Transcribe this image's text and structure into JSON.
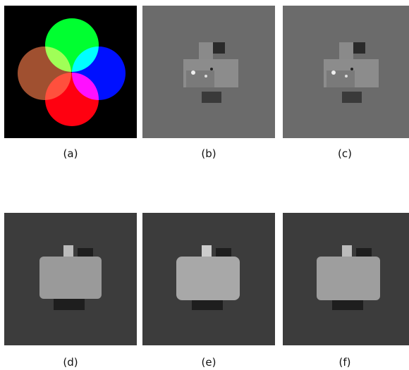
{
  "figure": {
    "captions": [
      "(a)",
      "(b)",
      "(c)",
      "(d)",
      "(e)",
      "(f)"
    ]
  }
}
